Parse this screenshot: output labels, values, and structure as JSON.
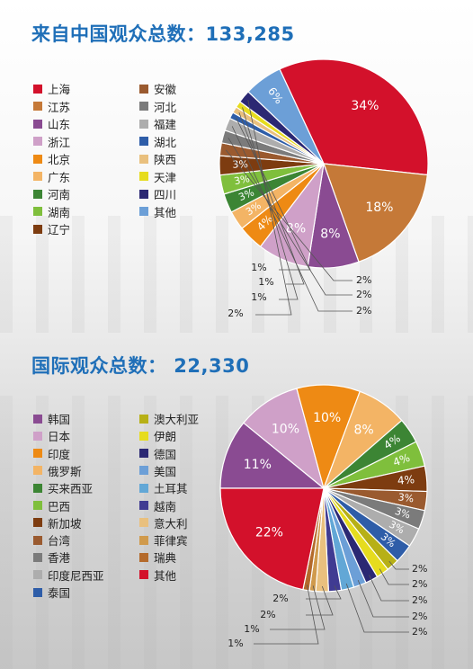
{
  "titles": {
    "domestic": "来自中国观众总数：133,285",
    "intl": "国际观众总数：  22,330"
  },
  "chart_data": [
    {
      "type": "pie",
      "title": "来自中国观众总数：133,285",
      "categories": [
        "上海",
        "江苏",
        "山东",
        "浙江",
        "北京",
        "广东",
        "河南",
        "湖南",
        "辽宁",
        "安徽",
        "河北",
        "福建",
        "湖北",
        "陕西",
        "天津",
        "四川",
        "其他"
      ],
      "colors": [
        "#d3112b",
        "#c57938",
        "#8a4b92",
        "#cfa0c8",
        "#ee8a14",
        "#f3b465",
        "#3c8534",
        "#7fbf3c",
        "#7d3c10",
        "#9a5a2f",
        "#7b7b7b",
        "#adadad",
        "#2e5da8",
        "#e9c07e",
        "#e6dc1e",
        "#2b2873",
        "#6c9fd7"
      ],
      "values": [
        34,
        18,
        8,
        8,
        4,
        3,
        3,
        3,
        3,
        2,
        2,
        2,
        1,
        1,
        1,
        2,
        6
      ],
      "labels": [
        "34%",
        "18%",
        "8%",
        "8%",
        "4%",
        "3%",
        "3%",
        "3%",
        "3%",
        "2%",
        "2%",
        "2%",
        "1%",
        "1%",
        "1%",
        "2%",
        "6%"
      ]
    },
    {
      "type": "pie",
      "title": "国际观众总数：  22,330",
      "categories": [
        "韩国",
        "日本",
        "印度",
        "俄罗斯",
        "买来西亚",
        "巴西",
        "新加坡",
        "台湾",
        "香港",
        "印度尼西亚",
        "泰国",
        "澳大利亚",
        "伊朗",
        "德国",
        "美国",
        "土耳其",
        "越南",
        "意大利",
        "菲律宾",
        "瑞典",
        "其他"
      ],
      "colors": [
        "#8a4b92",
        "#cfa0c8",
        "#ee8a14",
        "#f3b465",
        "#3c8534",
        "#7fbf3c",
        "#7d3c10",
        "#9a5a2f",
        "#7b7b7b",
        "#adadad",
        "#2e5da8",
        "#b7b016",
        "#e6dc1e",
        "#2b2873",
        "#6c9fd7",
        "#62a7d6",
        "#403b92",
        "#e9c07e",
        "#d09a4c",
        "#b46a2b",
        "#d3112b"
      ],
      "values": [
        11,
        10,
        10,
        8,
        4,
        4,
        4,
        3,
        3,
        3,
        3,
        2,
        2,
        2,
        2,
        2,
        2,
        2,
        1,
        1,
        22
      ],
      "labels": [
        "11%",
        "10%",
        "10%",
        "8%",
        "4%",
        "4%",
        "4%",
        "3%",
        "3%",
        "3%",
        "3%",
        "2%",
        "2%",
        "2%",
        "2%",
        "2%",
        "2%",
        "2%",
        "1%",
        "1%",
        "22%"
      ]
    }
  ]
}
